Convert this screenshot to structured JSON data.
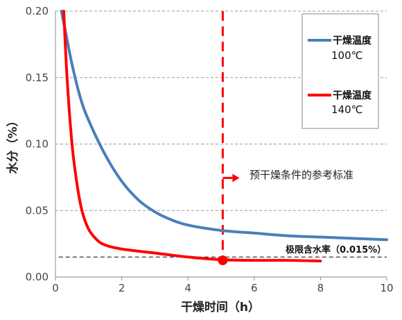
{
  "chart_data": {
    "type": "line",
    "xlabel": "干燥时间（h）",
    "ylabel": "水分（%）",
    "xlim": [
      0,
      10
    ],
    "ylim": [
      0,
      0.2
    ],
    "x_ticks": [
      "0",
      "2",
      "4",
      "6",
      "8",
      "10"
    ],
    "y_ticks": [
      "0.00",
      "0.05",
      "0.10",
      "0.15",
      "0.20"
    ],
    "grid": "horizontal dashed",
    "legend_position": "top-right",
    "series": [
      {
        "name": "干燥温度",
        "name_sub": "100℃",
        "color": "#4a7ebb",
        "x": [
          0.18,
          0.3,
          0.5,
          0.75,
          1.0,
          1.5,
          2.0,
          2.5,
          3.0,
          3.5,
          4.0,
          5.0,
          6.0,
          7.0,
          8.0,
          9.0,
          10.0
        ],
        "y": [
          0.2,
          0.185,
          0.16,
          0.135,
          0.118,
          0.092,
          0.072,
          0.058,
          0.049,
          0.043,
          0.039,
          0.035,
          0.033,
          0.031,
          0.03,
          0.029,
          0.028
        ]
      },
      {
        "name": "干燥温度",
        "name_sub": "140℃",
        "color": "#ff0000",
        "x": [
          0.25,
          0.35,
          0.5,
          0.65,
          0.8,
          1.0,
          1.25,
          1.5,
          2.0,
          3.0,
          4.0,
          5.0,
          6.0,
          7.0,
          8.0
        ],
        "y": [
          0.2,
          0.15,
          0.1,
          0.07,
          0.05,
          0.036,
          0.028,
          0.024,
          0.021,
          0.018,
          0.015,
          0.013,
          0.0125,
          0.0125,
          0.012
        ]
      }
    ],
    "reference_line": {
      "y": 0.015,
      "label": "极限含水率（0.015%）"
    },
    "marker": {
      "x": 5.05,
      "y": 0.0125,
      "color": "#ff0000"
    },
    "vertical_line": {
      "x": 5.05,
      "color": "#ff0000",
      "label": "预干燥条件的参考标准"
    }
  }
}
